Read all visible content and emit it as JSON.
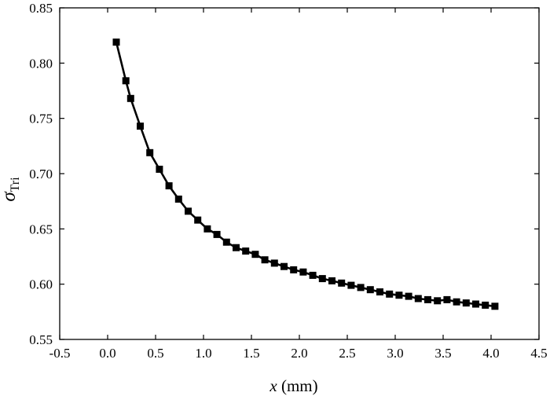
{
  "chart_data": {
    "type": "line",
    "title": "",
    "xlabel_var": "x",
    "xlabel_unit": " (mm)",
    "ylabel_sym": "σ",
    "ylabel_sub": "Tri",
    "xlim": [
      -0.5,
      4.5
    ],
    "ylim": [
      0.55,
      0.85
    ],
    "xticks": [
      "-0.5",
      "0.0",
      "0.5",
      "1.0",
      "1.5",
      "2.0",
      "2.5",
      "3.0",
      "3.5",
      "4.0",
      "4.5"
    ],
    "yticks": [
      "0.55",
      "0.60",
      "0.65",
      "0.70",
      "0.75",
      "0.80",
      "0.85"
    ],
    "grid": false,
    "marker": "square",
    "color": "#000000",
    "series": [
      {
        "x": [
          0.09,
          0.19,
          0.24,
          0.34,
          0.44,
          0.54,
          0.64,
          0.74,
          0.84,
          0.94,
          1.04,
          1.14,
          1.24,
          1.34,
          1.44,
          1.54,
          1.64,
          1.74,
          1.84,
          1.94,
          2.04,
          2.14,
          2.24,
          2.34,
          2.44,
          2.54,
          2.64,
          2.74,
          2.84,
          2.94,
          3.04,
          3.14,
          3.24,
          3.34,
          3.44,
          3.54,
          3.64,
          3.74,
          3.84,
          3.94,
          4.04
        ],
        "y": [
          0.819,
          0.784,
          0.768,
          0.743,
          0.719,
          0.704,
          0.689,
          0.677,
          0.666,
          0.658,
          0.65,
          0.645,
          0.638,
          0.633,
          0.63,
          0.627,
          0.622,
          0.619,
          0.616,
          0.613,
          0.611,
          0.608,
          0.605,
          0.603,
          0.601,
          0.599,
          0.597,
          0.595,
          0.593,
          0.591,
          0.59,
          0.589,
          0.587,
          0.586,
          0.585,
          0.586,
          0.584,
          0.583,
          0.582,
          0.581,
          0.58
        ]
      }
    ]
  }
}
